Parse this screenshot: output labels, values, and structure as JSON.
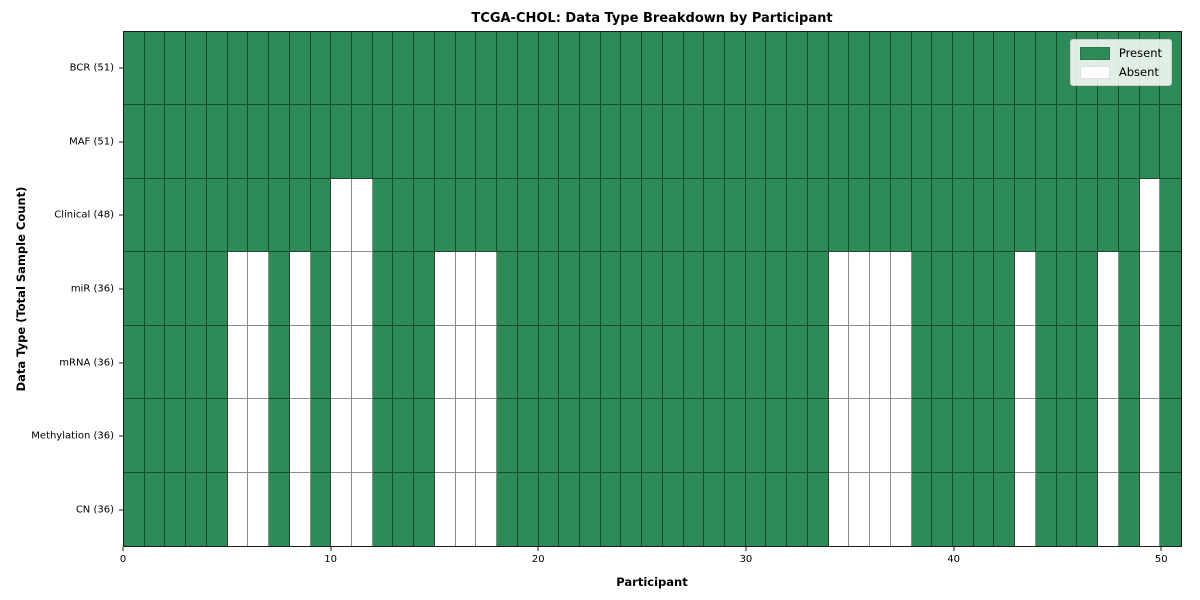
{
  "chart_data": {
    "type": "heatmap",
    "title": "TCGA-CHOL: Data Type Breakdown by Participant",
    "xlabel": "Participant",
    "ylabel": "Data Type (Total Sample Count)",
    "n_participants": 51,
    "x_range": [
      0,
      51
    ],
    "x_ticks": [
      0,
      10,
      20,
      30,
      40,
      50
    ],
    "grid": "cell-borders",
    "legend_position": "upper-right",
    "colors": {
      "present": "#2e8b57",
      "absent": "#ffffff"
    },
    "legend": [
      {
        "key": "present",
        "label": "Present",
        "color": "#2e8b57"
      },
      {
        "key": "absent",
        "label": "Absent",
        "color": "#ffffff"
      }
    ],
    "rows": [
      {
        "label": "BCR (51)",
        "count": 51,
        "absent": []
      },
      {
        "label": "MAF (51)",
        "count": 51,
        "absent": []
      },
      {
        "label": "Clinical (48)",
        "count": 48,
        "absent": [
          10,
          11,
          49
        ]
      },
      {
        "label": "miR (36)",
        "count": 36,
        "absent": [
          5,
          6,
          8,
          10,
          11,
          15,
          16,
          17,
          34,
          35,
          36,
          37,
          43,
          47,
          49
        ]
      },
      {
        "label": "mRNA (36)",
        "count": 36,
        "absent": [
          5,
          6,
          8,
          10,
          11,
          15,
          16,
          17,
          34,
          35,
          36,
          37,
          43,
          47,
          49
        ]
      },
      {
        "label": "Methylation (36)",
        "count": 36,
        "absent": [
          5,
          6,
          8,
          10,
          11,
          15,
          16,
          17,
          34,
          35,
          36,
          37,
          43,
          47,
          49
        ]
      },
      {
        "label": "CN (36)",
        "count": 36,
        "absent": [
          5,
          6,
          8,
          10,
          11,
          15,
          16,
          17,
          34,
          35,
          36,
          37,
          43,
          47,
          49
        ]
      }
    ]
  }
}
